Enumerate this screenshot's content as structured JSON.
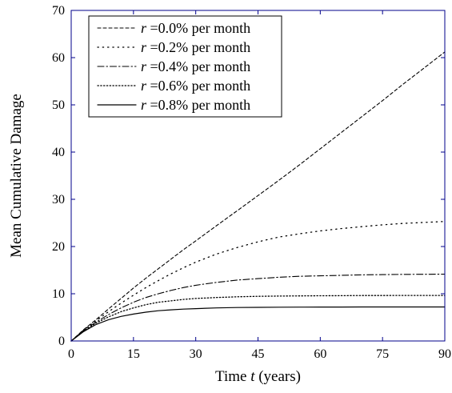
{
  "chart_data": {
    "type": "line",
    "title": "",
    "xlabel": {
      "pre": "Time ",
      "var": "t",
      "post": " (years)"
    },
    "ylabel": "Mean Cumulative Damage",
    "xlim": [
      0,
      90
    ],
    "ylim": [
      0,
      70
    ],
    "xticks": [
      0,
      15,
      30,
      45,
      60,
      75,
      90
    ],
    "yticks": [
      0,
      10,
      20,
      30,
      40,
      50,
      60,
      70
    ],
    "grid": false,
    "legend_position": "top-left",
    "colors": {
      "axes": "#00008b",
      "series": "#000000"
    },
    "series": [
      {
        "name": "=0.0% per month",
        "var": "r",
        "style": "dashed",
        "x": [
          0,
          3,
          6,
          9,
          12,
          15,
          18,
          21,
          24,
          27,
          30,
          35,
          40,
          45,
          50,
          55,
          60,
          65,
          70,
          75,
          80,
          85,
          90
        ],
        "y": [
          0,
          2.4,
          4.5,
          6.8,
          9.0,
          11.2,
          13.3,
          15.3,
          17.3,
          19.3,
          21.2,
          24.4,
          27.6,
          30.8,
          34.0,
          37.3,
          40.7,
          44.1,
          47.5,
          50.9,
          54.4,
          57.8,
          61.2
        ]
      },
      {
        "name": "=0.2% per month",
        "var": "r",
        "style": "dotted-sparse",
        "x": [
          0,
          3,
          6,
          9,
          12,
          15,
          18,
          21,
          24,
          27,
          30,
          35,
          40,
          45,
          50,
          55,
          60,
          65,
          70,
          75,
          80,
          85,
          90
        ],
        "y": [
          0,
          2.3,
          4.3,
          6.2,
          8.0,
          9.7,
          11.3,
          12.8,
          14.2,
          15.5,
          16.7,
          18.4,
          19.8,
          21.0,
          22.0,
          22.7,
          23.3,
          23.8,
          24.2,
          24.6,
          24.9,
          25.1,
          25.3
        ]
      },
      {
        "name": "=0.4% per month",
        "var": "r",
        "style": "dashdot",
        "x": [
          0,
          3,
          6,
          9,
          12,
          15,
          18,
          21,
          24,
          27,
          30,
          35,
          40,
          45,
          50,
          55,
          60,
          65,
          70,
          75,
          80,
          85,
          90
        ],
        "y": [
          0,
          2.2,
          4.0,
          5.6,
          7.0,
          8.2,
          9.2,
          10.0,
          10.7,
          11.3,
          11.8,
          12.4,
          12.9,
          13.2,
          13.5,
          13.7,
          13.8,
          13.9,
          14.0,
          14.05,
          14.1,
          14.12,
          14.15
        ]
      },
      {
        "name": "=0.6% per month",
        "var": "r",
        "style": "dotted",
        "x": [
          0,
          3,
          6,
          9,
          12,
          15,
          18,
          21,
          24,
          27,
          30,
          35,
          40,
          45,
          50,
          55,
          60,
          65,
          70,
          75,
          80,
          85,
          90
        ],
        "y": [
          0,
          2.1,
          3.8,
          5.1,
          6.2,
          7.0,
          7.7,
          8.2,
          8.5,
          8.8,
          9.0,
          9.2,
          9.35,
          9.45,
          9.5,
          9.55,
          9.58,
          9.6,
          9.62,
          9.63,
          9.64,
          9.65,
          9.65
        ]
      },
      {
        "name": "=0.8% per month",
        "var": "r",
        "style": "solid",
        "x": [
          0,
          3,
          6,
          9,
          12,
          15,
          18,
          21,
          24,
          27,
          30,
          35,
          40,
          45,
          50,
          55,
          60,
          65,
          70,
          75,
          80,
          85,
          90
        ],
        "y": [
          0,
          2.0,
          3.5,
          4.5,
          5.2,
          5.7,
          6.1,
          6.4,
          6.6,
          6.75,
          6.85,
          7.0,
          7.08,
          7.12,
          7.15,
          7.17,
          7.18,
          7.19,
          7.2,
          7.2,
          7.2,
          7.2,
          7.2
        ]
      }
    ]
  }
}
